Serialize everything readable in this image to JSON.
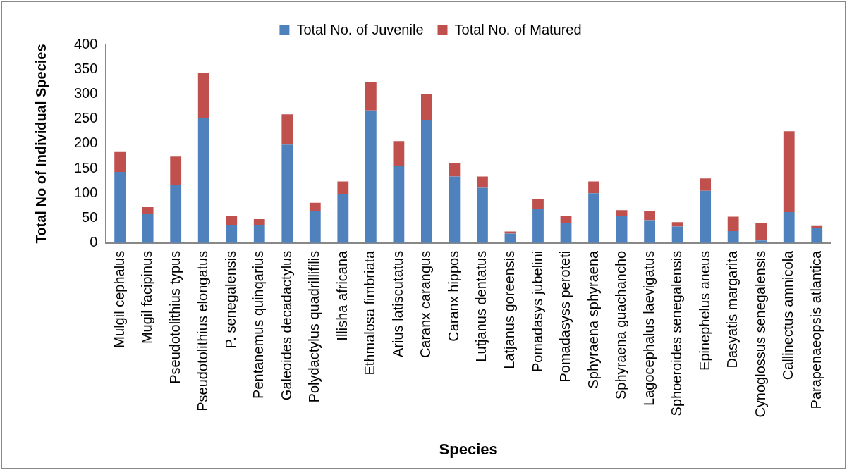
{
  "chart_data": {
    "type": "bar",
    "stacked": true,
    "xlabel": "Species",
    "ylabel": "Total No of Individual Species",
    "categories": [
      "Mulgil cephalus",
      "Mugil facipinus",
      "Pseudotolithius typus",
      "Pseudotolithius elongatus",
      "P. senegalensis",
      "Pentanemus quinqarius",
      "Galeoides decadactylus",
      "Polydactylus quadrillifilis",
      "Illisha africana",
      "Ethmalosa fimbriata",
      "Arius latiscutatus",
      "Caranx carangus",
      "Caranx hippos",
      "Lutjanus dentatus",
      "Latjanus goreensis",
      "Pomadasys jubelini",
      "Pomadasyss peroteti",
      "Sphyraena sphyraena",
      "Sphyraena guachancho",
      "Lagocephalus laevigatus",
      "Sphoeroides senegalensis",
      "Epinephelus aneus",
      "Dasyatis margarita",
      "Cynoglossus senegalensis",
      "Callinectus amnicola",
      "Parapenaeopsis atlantica"
    ],
    "series": [
      {
        "name": "Total No. of Juvenile",
        "color": "#4f81bd",
        "values": [
          143,
          58,
          117,
          252,
          36,
          36,
          198,
          65,
          98,
          267,
          155,
          247,
          134,
          111,
          19,
          68,
          40,
          100,
          54,
          46,
          33,
          105,
          24,
          5,
          62,
          30
        ]
      },
      {
        "name": "Total No. of Matured",
        "color": "#c0504d",
        "values": [
          40,
          14,
          57,
          91,
          18,
          12,
          61,
          16,
          26,
          57,
          50,
          53,
          27,
          23,
          4,
          21,
          14,
          24,
          12,
          19,
          9,
          25,
          29,
          36,
          163,
          4
        ]
      }
    ],
    "ylim": [
      0,
      400
    ],
    "yticks": [
      0,
      50,
      100,
      150,
      200,
      250,
      300,
      350,
      400
    ],
    "grid": false,
    "legend": "top"
  }
}
